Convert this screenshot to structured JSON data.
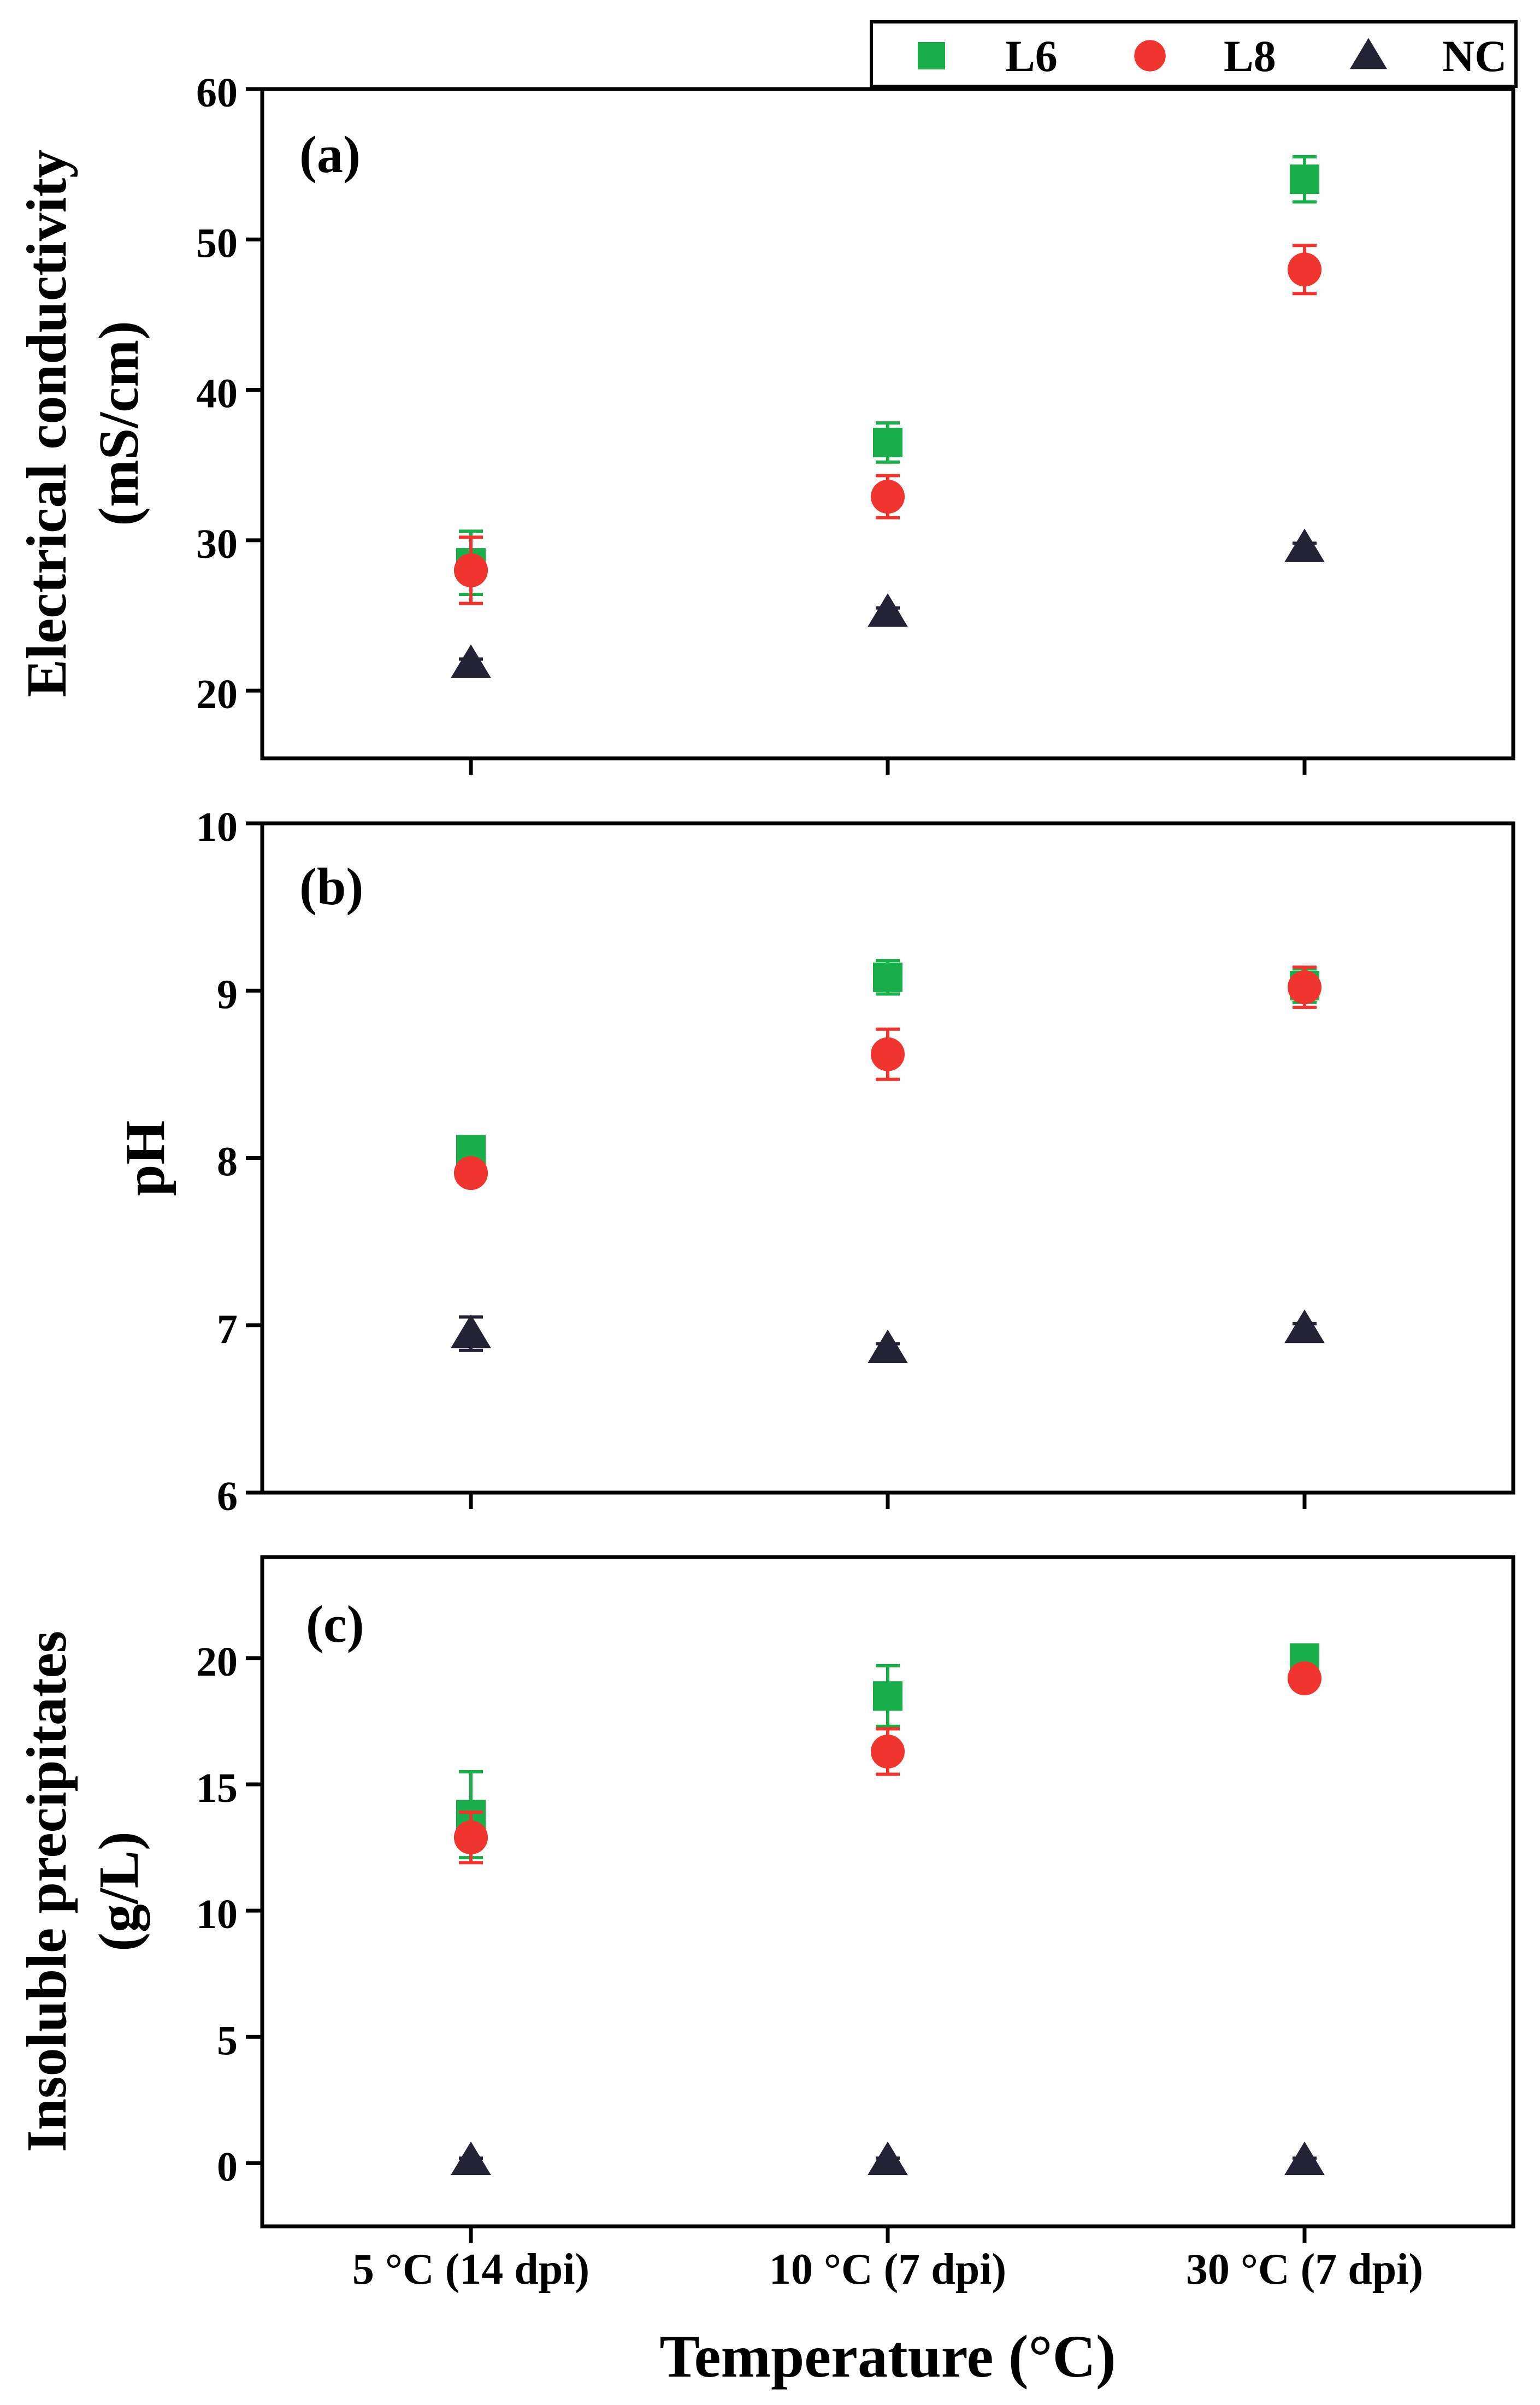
{
  "chart_data": {
    "type": "scatter",
    "categories": [
      "5 °C (14 dpi)",
      "10 °C (7 dpi)",
      "30 °C (7 dpi)"
    ],
    "xlabel": "Temperature (°C)",
    "legend": {
      "position": "top-right",
      "entries": [
        {
          "name": "L6",
          "marker": "square",
          "color": "#1aae4a"
        },
        {
          "name": "L8",
          "marker": "circle",
          "color": "#f0352f"
        },
        {
          "name": "NC",
          "marker": "triangle",
          "color": "#232335"
        }
      ]
    },
    "panels": [
      {
        "label": "(a)",
        "ylabel_lines": [
          "Electrical conductivity",
          "(mS/cm)"
        ],
        "ylim": [
          15.5,
          60
        ],
        "yticks": [
          20,
          30,
          40,
          50,
          60
        ],
        "series": [
          {
            "name": "L6",
            "values": [
              28.5,
              36.5,
              54.0
            ],
            "errors": [
              2.1,
              1.3,
              1.5
            ]
          },
          {
            "name": "L8",
            "values": [
              28.0,
              32.9,
              48.0
            ],
            "errors": [
              2.2,
              1.4,
              1.6
            ]
          },
          {
            "name": "NC",
            "values": [
              21.8,
              25.2,
              29.5
            ],
            "errors": [
              0.3,
              0.3,
              0.3
            ]
          }
        ]
      },
      {
        "label": "(b)",
        "ylabel_lines": [
          "pH"
        ],
        "ylim": [
          6,
          10
        ],
        "yticks": [
          6,
          7,
          8,
          9,
          10
        ],
        "series": [
          {
            "name": "L6",
            "values": [
              8.05,
              9.08,
              9.03
            ],
            "errors": [
              0.03,
              0.1,
              0.1
            ]
          },
          {
            "name": "L8",
            "values": [
              7.91,
              8.62,
              9.02
            ],
            "errors": [
              0.03,
              0.15,
              0.12
            ]
          },
          {
            "name": "NC",
            "values": [
              6.95,
              6.86,
              6.98
            ],
            "errors": [
              0.1,
              0.03,
              0.03
            ]
          }
        ]
      },
      {
        "label": "(c)",
        "ylabel_lines": [
          "Insoluble precipitates",
          "(g/L)"
        ],
        "ylim": [
          -2.5,
          24
        ],
        "yticks": [
          0,
          5,
          10,
          15,
          20
        ],
        "series": [
          {
            "name": "L6",
            "values": [
              13.8,
              18.5,
              20.0
            ],
            "errors": [
              1.7,
              1.2,
              0.3
            ]
          },
          {
            "name": "L8",
            "values": [
              12.9,
              16.3,
              19.2
            ],
            "errors": [
              1.0,
              0.9,
              0.4
            ]
          },
          {
            "name": "NC",
            "values": [
              0.1,
              0.1,
              0.1
            ],
            "errors": [
              0.1,
              0.1,
              0.1
            ]
          }
        ]
      }
    ]
  }
}
